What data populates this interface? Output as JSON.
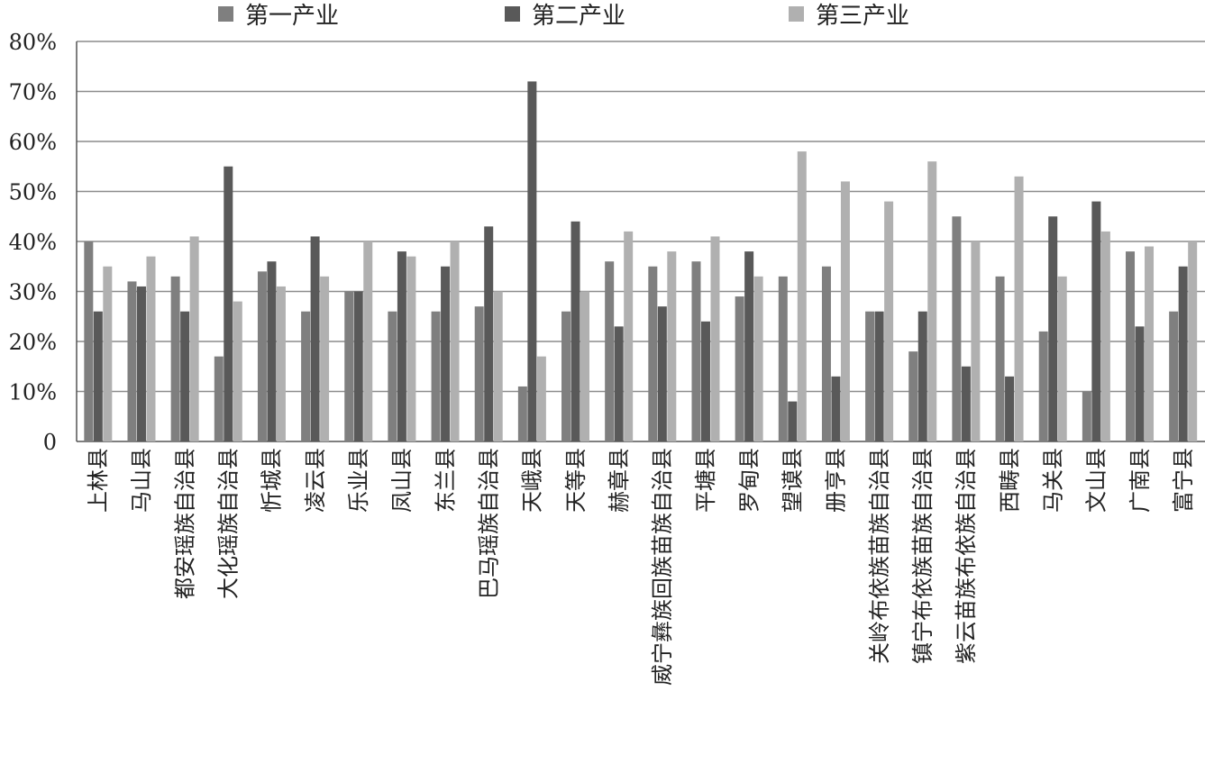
{
  "chart_data": {
    "type": "bar",
    "categories": [
      "上林县",
      "马山县",
      "都安瑶族自治县",
      "大化瑶族自治县",
      "忻城县",
      "凌云县",
      "乐业县",
      "凤山县",
      "东兰县",
      "巴马瑶族自治县",
      "天峨县",
      "天等县",
      "赫章县",
      "威宁彝族回族苗族自治县",
      "平塘县",
      "罗甸县",
      "望谟县",
      "册亨县",
      "关岭布依族苗族自治县",
      "镇宁布依族苗族自治县",
      "紫云苗族布依族自治县",
      "西畴县",
      "马关县",
      "文山县",
      "广南县",
      "富宁县"
    ],
    "series": [
      {
        "name": "第一产业",
        "color": "#7f7f7f",
        "values": [
          40,
          32,
          33,
          17,
          34,
          26,
          30,
          26,
          26,
          27,
          11,
          26,
          36,
          35,
          36,
          29,
          33,
          35,
          26,
          18,
          45,
          33,
          22,
          10,
          38,
          26
        ]
      },
      {
        "name": "第二产业",
        "color": "#595959",
        "values": [
          26,
          31,
          26,
          55,
          36,
          41,
          30,
          38,
          35,
          43,
          72,
          44,
          23,
          27,
          24,
          38,
          8,
          13,
          26,
          26,
          15,
          13,
          45,
          48,
          23,
          35
        ]
      },
      {
        "name": "第三产业",
        "color": "#b0b0b0",
        "values": [
          35,
          37,
          41,
          28,
          31,
          33,
          40,
          37,
          40,
          30,
          17,
          30,
          42,
          38,
          41,
          33,
          58,
          52,
          48,
          56,
          40,
          53,
          33,
          42,
          39,
          40
        ]
      }
    ],
    "ylim": [
      0,
      80
    ],
    "yticks": [
      0,
      10,
      20,
      30,
      40,
      50,
      60,
      70,
      80
    ],
    "ytick_labels": [
      "0",
      "10%",
      "20%",
      "30%",
      "40%",
      "50%",
      "60%",
      "70%",
      "80%"
    ],
    "grid": true,
    "legend": "top"
  }
}
